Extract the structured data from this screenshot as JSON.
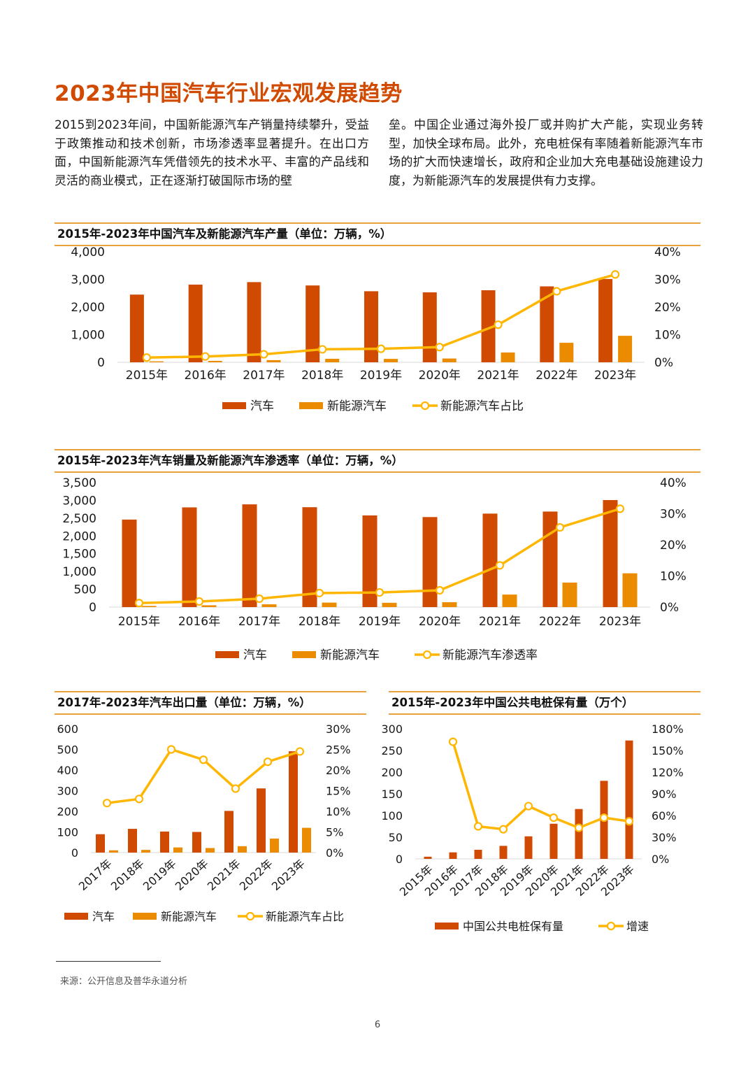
{
  "page": {
    "title": "2023年中国汽车行业宏观发展趋势",
    "para_left": "2015到2023年间，中国新能源汽车产销量持续攀升，受益于政策推动和技术创新，市场渗透率显著提升。在出口方面，中国新能源汽车凭借领先的技术水平、丰富的产品线和灵活的商业模式，正在逐渐打破国际市场的壁",
    "para_right": "垒。中国企业通过海外投厂或并购扩大产能，实现业务转型，加快全球布局。此外，充电桩保有率随着新能源汽车市场的扩大而快速增长，政府和企业加大充电基础设施建设力度，为新能源汽车的发展提供有力支撑。",
    "source": "来源：公开信息及普华永道分析",
    "page_number": "6"
  },
  "colors": {
    "title": "#d04a02",
    "bar_main": "#d04a02",
    "bar_secondary": "#eb8c00",
    "line": "#ffb600",
    "rule": "#e8a23c"
  },
  "chart_data": [
    {
      "type": "bar",
      "title": "2015年-2023年中国汽车及新能源汽车产量（单位：万辆，%）",
      "categories": [
        "2015年",
        "2016年",
        "2017年",
        "2018年",
        "2019年",
        "2020年",
        "2021年",
        "2022年",
        "2023年"
      ],
      "series": [
        {
          "name": "汽车",
          "type": "bar",
          "axis": "left",
          "values": [
            2450,
            2812,
            2902,
            2781,
            2572,
            2532,
            2608,
            2748,
            3016
          ]
        },
        {
          "name": "新能源汽车",
          "type": "bar",
          "axis": "left",
          "values": [
            34,
            52,
            79,
            127,
            124,
            137,
            355,
            706,
            959
          ]
        },
        {
          "name": "新能源汽车占比",
          "type": "line",
          "axis": "right",
          "values": [
            1.7,
            2.1,
            2.9,
            4.7,
            4.9,
            5.5,
            13.6,
            25.7,
            31.8
          ]
        }
      ],
      "ylim": [
        0,
        4000
      ],
      "yticks": [
        "0",
        "1,000",
        "2,000",
        "3,000",
        "4,000"
      ],
      "y2lim": [
        0,
        40
      ],
      "y2ticks": [
        "0%",
        "10%",
        "20%",
        "30%",
        "40%"
      ],
      "legend": "bottom"
    },
    {
      "type": "bar",
      "title": "2015年-2023年汽车销量及新能源汽车渗透率（单位：万辆，%）",
      "categories": [
        "2015年",
        "2016年",
        "2017年",
        "2018年",
        "2019年",
        "2020年",
        "2021年",
        "2022年",
        "2023年"
      ],
      "series": [
        {
          "name": "汽车",
          "type": "bar",
          "axis": "left",
          "values": [
            2460,
            2803,
            2888,
            2808,
            2577,
            2531,
            2628,
            2686,
            3009
          ]
        },
        {
          "name": "新能源汽车",
          "type": "bar",
          "axis": "left",
          "values": [
            33,
            51,
            78,
            126,
            121,
            137,
            352,
            689,
            950
          ]
        },
        {
          "name": "新能源汽车渗透率",
          "type": "line",
          "axis": "right",
          "values": [
            1.3,
            1.8,
            2.7,
            4.5,
            4.7,
            5.4,
            13.4,
            25.6,
            31.6
          ]
        }
      ],
      "ylim": [
        0,
        3500
      ],
      "yticks": [
        "0",
        "500",
        "1,000",
        "1,500",
        "2,000",
        "2,500",
        "3,000",
        "3,500"
      ],
      "y2lim": [
        0,
        40
      ],
      "y2ticks": [
        "0%",
        "10%",
        "20%",
        "30%",
        "40%"
      ],
      "legend": "bottom"
    },
    {
      "type": "bar",
      "title": "2017年-2023年汽车出口量（单位：万辆，%）",
      "categories": [
        "2017年",
        "2018年",
        "2019年",
        "2020年",
        "2021年",
        "2022年",
        "2023年"
      ],
      "series": [
        {
          "name": "汽车",
          "type": "bar",
          "axis": "left",
          "values": [
            89,
            115,
            102,
            100,
            202,
            311,
            491
          ]
        },
        {
          "name": "新能源汽车",
          "type": "bar",
          "axis": "left",
          "values": [
            11,
            13,
            25,
            22,
            31,
            68,
            120
          ]
        },
        {
          "name": "新能源汽车占比",
          "type": "line",
          "axis": "right",
          "values": [
            12,
            13,
            25,
            22.5,
            15.5,
            22,
            24.5
          ]
        }
      ],
      "ylim": [
        0,
        600
      ],
      "yticks": [
        "0",
        "100",
        "200",
        "300",
        "400",
        "500",
        "600"
      ],
      "y2lim": [
        0,
        30
      ],
      "y2ticks": [
        "0%",
        "5%",
        "10%",
        "15%",
        "20%",
        "25%",
        "30%"
      ],
      "legend": "bottom"
    },
    {
      "type": "bar",
      "title": "2015年-2023年中国公共电桩保有量（万个）",
      "categories": [
        "2015年",
        "2016年",
        "2017年",
        "2018年",
        "2019年",
        "2020年",
        "2021年",
        "2022年",
        "2023年"
      ],
      "series": [
        {
          "name": "中国公共电桩保有量",
          "type": "bar",
          "axis": "left",
          "values": [
            5,
            15,
            21,
            30,
            52,
            81,
            115,
            180,
            273
          ]
        },
        {
          "name": "增速",
          "type": "line",
          "axis": "right",
          "values": [
            null,
            162,
            45,
            41,
            73,
            57,
            43,
            57,
            52
          ]
        }
      ],
      "ylim": [
        0,
        300
      ],
      "yticks": [
        "0",
        "50",
        "100",
        "150",
        "200",
        "250",
        "300"
      ],
      "y2lim": [
        0,
        180
      ],
      "y2ticks": [
        "0%",
        "30%",
        "60%",
        "90%",
        "120%",
        "150%",
        "180%"
      ],
      "legend": "bottom"
    }
  ]
}
